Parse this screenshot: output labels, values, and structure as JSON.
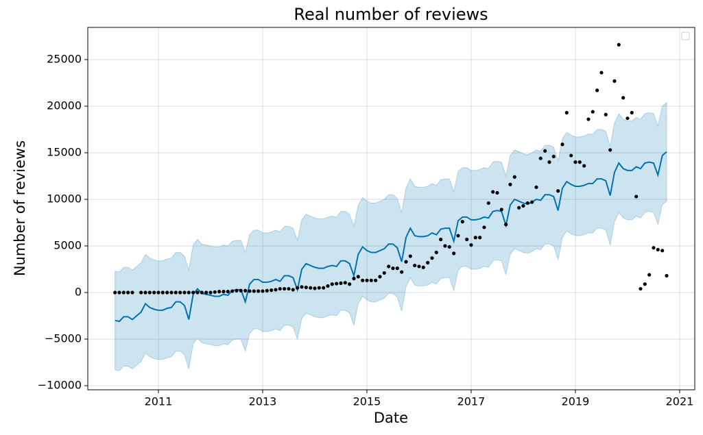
{
  "chart_data": {
    "type": "line",
    "title": "Real number of reviews",
    "x_label": "Date",
    "y_label": "Number of reviews",
    "x": [
      2010.167,
      2010.25,
      2010.333,
      2010.417,
      2010.5,
      2010.583,
      2010.667,
      2010.75,
      2010.833,
      2010.917,
      2011,
      2011.083,
      2011.167,
      2011.25,
      2011.333,
      2011.417,
      2011.5,
      2011.583,
      2011.667,
      2011.75,
      2011.833,
      2011.917,
      2012,
      2012.083,
      2012.167,
      2012.25,
      2012.333,
      2012.417,
      2012.5,
      2012.583,
      2012.667,
      2012.75,
      2012.833,
      2012.917,
      2013,
      2013.083,
      2013.167,
      2013.25,
      2013.333,
      2013.417,
      2013.5,
      2013.583,
      2013.667,
      2013.75,
      2013.833,
      2013.917,
      2014,
      2014.083,
      2014.167,
      2014.25,
      2014.333,
      2014.417,
      2014.5,
      2014.583,
      2014.667,
      2014.75,
      2014.833,
      2014.917,
      2015,
      2015.083,
      2015.167,
      2015.25,
      2015.333,
      2015.417,
      2015.5,
      2015.583,
      2015.667,
      2015.75,
      2015.833,
      2015.917,
      2016,
      2016.083,
      2016.167,
      2016.25,
      2016.333,
      2016.417,
      2016.5,
      2016.583,
      2016.667,
      2016.75,
      2016.833,
      2016.917,
      2017,
      2017.083,
      2017.167,
      2017.25,
      2017.333,
      2017.417,
      2017.5,
      2017.583,
      2017.667,
      2017.75,
      2017.833,
      2017.917,
      2018,
      2018.083,
      2018.167,
      2018.25,
      2018.333,
      2018.417,
      2018.5,
      2018.583,
      2018.667,
      2018.75,
      2018.833,
      2018.917,
      2019,
      2019.083,
      2019.167,
      2019.25,
      2019.333,
      2019.417,
      2019.5,
      2019.583,
      2019.667,
      2019.75,
      2019.833,
      2019.917,
      2020,
      2020.083,
      2020.167,
      2020.25,
      2020.333,
      2020.417,
      2020.5,
      2020.583,
      2020.667,
      2020.75
    ],
    "series": [
      {
        "type": "band",
        "color": "#0072B2",
        "lower": [
          -8300,
          -8400,
          -7900,
          -7900,
          -8200,
          -7800,
          -7400,
          -6500,
          -6900,
          -7100,
          -7200,
          -7200,
          -7000,
          -6900,
          -6300,
          -6300,
          -6700,
          -8200,
          -5500,
          -4900,
          -5400,
          -5500,
          -5600,
          -5700,
          -5700,
          -5500,
          -5600,
          -5100,
          -5000,
          -5000,
          -6300,
          -4400,
          -3900,
          -3900,
          -4200,
          -4200,
          -4100,
          -3900,
          -4100,
          -3500,
          -3500,
          -3700,
          -5000,
          -2800,
          -2200,
          -2400,
          -2600,
          -2700,
          -2700,
          -2500,
          -2400,
          -2500,
          -1900,
          -1900,
          -2200,
          -3500,
          -1200,
          -400,
          -800,
          -1000,
          -1000,
          -800,
          -600,
          -100,
          -100,
          -500,
          -2000,
          600,
          1600,
          800,
          700,
          700,
          800,
          1100,
          900,
          1500,
          1600,
          1600,
          200,
          2400,
          2800,
          2800,
          2500,
          2500,
          2600,
          2800,
          2700,
          3400,
          3500,
          3400,
          1900,
          4100,
          4700,
          4500,
          4300,
          4200,
          4400,
          4700,
          4600,
          5200,
          5200,
          5000,
          3500,
          5900,
          6600,
          6300,
          6100,
          6100,
          6200,
          6400,
          6400,
          6900,
          6900,
          6700,
          5100,
          7600,
          8600,
          8000,
          7800,
          7800,
          8200,
          8000,
          8600,
          8700,
          8600,
          7300,
          9400,
          9800
        ],
        "upper": [
          2300,
          2200,
          2700,
          2700,
          2400,
          2800,
          3200,
          4100,
          3700,
          3500,
          3400,
          3400,
          3600,
          3700,
          4300,
          4300,
          3900,
          2400,
          5100,
          5700,
          5200,
          5100,
          5000,
          4900,
          4900,
          5100,
          5000,
          5500,
          5600,
          5600,
          4300,
          6200,
          6700,
          6700,
          6400,
          6400,
          6500,
          6700,
          6500,
          7100,
          7100,
          6900,
          5600,
          7800,
          8400,
          8200,
          8000,
          7900,
          7900,
          8100,
          8200,
          8100,
          8700,
          8700,
          8400,
          7100,
          9400,
          10200,
          9800,
          9600,
          9600,
          9800,
          10000,
          10500,
          10500,
          10100,
          8600,
          11200,
          12200,
          11400,
          11300,
          11300,
          11400,
          11700,
          11500,
          12100,
          12200,
          12200,
          10800,
          13000,
          13400,
          13400,
          13100,
          13100,
          13200,
          13400,
          13300,
          14000,
          14100,
          14000,
          12500,
          14700,
          15300,
          15100,
          14900,
          14800,
          15000,
          15300,
          15200,
          15800,
          15800,
          15600,
          14100,
          16500,
          17200,
          16900,
          16700,
          16700,
          16800,
          17000,
          17000,
          17500,
          17500,
          17300,
          15700,
          18200,
          19200,
          18600,
          18400,
          18400,
          18800,
          18600,
          19200,
          19300,
          19200,
          17900,
          20000,
          20400
        ]
      },
      {
        "type": "line",
        "color": "#0072B2",
        "values": [
          -3000,
          -3100,
          -2600,
          -2600,
          -2900,
          -2500,
          -2100,
          -1200,
          -1600,
          -1800,
          -1900,
          -1900,
          -1700,
          -1600,
          -1000,
          -1000,
          -1400,
          -2900,
          -200,
          400,
          -100,
          -200,
          -300,
          -400,
          -400,
          -200,
          -300,
          200,
          300,
          300,
          -1000,
          900,
          1400,
          1400,
          1100,
          1100,
          1200,
          1400,
          1200,
          1800,
          1800,
          1600,
          300,
          2500,
          3100,
          2900,
          2700,
          2600,
          2600,
          2800,
          2900,
          2800,
          3400,
          3400,
          3100,
          1800,
          4100,
          4900,
          4500,
          4300,
          4300,
          4500,
          4700,
          5200,
          5200,
          4800,
          3300,
          5900,
          6900,
          6100,
          6000,
          6000,
          6100,
          6400,
          6200,
          6800,
          6900,
          6900,
          5500,
          7700,
          8100,
          8100,
          7800,
          7800,
          7900,
          8100,
          8000,
          8700,
          8800,
          8700,
          7200,
          9400,
          10000,
          9800,
          9600,
          9500,
          9700,
          10000,
          9900,
          10500,
          10500,
          10300,
          8800,
          11200,
          11900,
          11600,
          11400,
          11400,
          11500,
          11700,
          11700,
          12200,
          12200,
          12000,
          10400,
          12900,
          13900,
          13300,
          13100,
          13100,
          13500,
          13300,
          13900,
          14000,
          13900,
          12600,
          14700,
          15100
        ]
      },
      {
        "type": "scatter",
        "color": "#000000",
        "values": [
          0,
          0,
          0,
          0,
          0,
          null,
          0,
          0,
          0,
          0,
          0,
          0,
          0,
          0,
          0,
          0,
          0,
          0,
          0,
          0,
          0,
          0,
          0,
          50,
          100,
          100,
          100,
          150,
          200,
          200,
          200,
          150,
          150,
          150,
          150,
          200,
          250,
          300,
          400,
          400,
          400,
          300,
          500,
          600,
          550,
          500,
          450,
          500,
          500,
          700,
          900,
          950,
          1000,
          1050,
          900,
          1500,
          1700,
          1300,
          1300,
          1300,
          1300,
          1700,
          2100,
          2800,
          2600,
          2600,
          2200,
          3300,
          3900,
          2900,
          2800,
          2700,
          3200,
          3700,
          4300,
          5700,
          5000,
          4900,
          4200,
          6100,
          7600,
          5700,
          5100,
          5900,
          5900,
          7000,
          9600,
          10800,
          10700,
          8900,
          7300,
          11600,
          12400,
          9100,
          9300,
          9600,
          9700,
          11300,
          14400,
          15200,
          14000,
          14600,
          10900,
          15900,
          19300,
          14700,
          14000,
          14000,
          13600,
          18600,
          19400,
          21700,
          23600,
          19100,
          15300,
          22700,
          26600,
          20900,
          18700,
          19300,
          10300,
          400,
          900,
          1900,
          4800,
          4600,
          4500,
          1800
        ]
      }
    ],
    "xlim": [
      2009.645,
      2021.29
    ],
    "xticks": [
      2011,
      2013,
      2015,
      2017,
      2019,
      2021
    ],
    "ylim": [
      -10441,
      28456
    ],
    "yticks": [
      {
        "value": -10000,
        "label": "−10000"
      },
      {
        "value": -5000,
        "label": "−5000"
      },
      0,
      5000,
      10000,
      15000,
      20000,
      25000
    ],
    "grid": true
  }
}
